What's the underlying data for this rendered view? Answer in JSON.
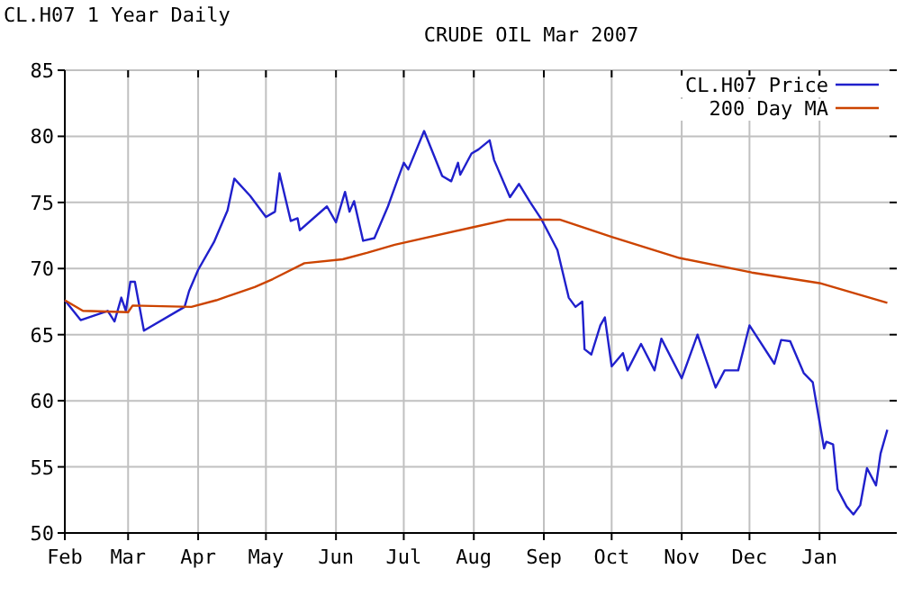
{
  "chart_data": {
    "type": "line",
    "title": "CRUDE OIL Mar 2007",
    "subtitle": "CL.H07 1 Year Daily",
    "xlim": [
      "2006-02-01",
      "2007-02-01"
    ],
    "xticks": [
      {
        "value": "2006-02-01",
        "label": "Feb"
      },
      {
        "value": "2006-03-01",
        "label": "Mar"
      },
      {
        "value": "2006-04-01",
        "label": "Apr"
      },
      {
        "value": "2006-05-01",
        "label": "May"
      },
      {
        "value": "2006-06-01",
        "label": "Jun"
      },
      {
        "value": "2006-07-01",
        "label": "Jul"
      },
      {
        "value": "2006-08-01",
        "label": "Aug"
      },
      {
        "value": "2006-09-01",
        "label": "Sep"
      },
      {
        "value": "2006-10-01",
        "label": "Oct"
      },
      {
        "value": "2006-11-01",
        "label": "Nov"
      },
      {
        "value": "2006-12-01",
        "label": "Dec"
      },
      {
        "value": "2007-01-01",
        "label": "Jan"
      }
    ],
    "ylim": [
      50,
      85
    ],
    "yticks": [
      50,
      55,
      60,
      65,
      70,
      75,
      80,
      85
    ],
    "grid": true,
    "legend": "top right",
    "line_style": "solid",
    "marker": "none",
    "series": [
      {
        "name": "CL.H07 Price",
        "color": "#2020cc",
        "x": [
          "2006-02-01",
          "2006-02-08",
          "2006-02-20",
          "2006-02-23",
          "2006-02-26",
          "2006-02-28",
          "2006-03-02",
          "2006-03-04",
          "2006-03-08",
          "2006-03-26",
          "2006-03-28",
          "2006-04-01",
          "2006-04-08",
          "2006-04-14",
          "2006-04-17",
          "2006-04-24",
          "2006-05-01",
          "2006-05-05",
          "2006-05-07",
          "2006-05-12",
          "2006-05-15",
          "2006-05-16",
          "2006-05-28",
          "2006-06-01",
          "2006-06-05",
          "2006-06-07",
          "2006-06-09",
          "2006-06-13",
          "2006-06-18",
          "2006-06-24",
          "2006-06-28",
          "2006-07-01",
          "2006-07-03",
          "2006-07-10",
          "2006-07-18",
          "2006-07-22",
          "2006-07-25",
          "2006-07-26",
          "2006-07-31",
          "2006-08-03",
          "2006-08-08",
          "2006-08-10",
          "2006-08-17",
          "2006-08-21",
          "2006-08-26",
          "2006-08-31",
          "2006-09-07",
          "2006-09-12",
          "2006-09-15",
          "2006-09-18",
          "2006-09-19",
          "2006-09-22",
          "2006-09-26",
          "2006-09-28",
          "2006-10-01",
          "2006-10-06",
          "2006-10-08",
          "2006-10-14",
          "2006-10-20",
          "2006-10-23",
          "2006-11-01",
          "2006-11-08",
          "2006-11-16",
          "2006-11-20",
          "2006-11-26",
          "2006-12-01",
          "2006-12-12",
          "2006-12-15",
          "2006-12-19",
          "2006-12-25",
          "2006-12-29",
          "2007-01-03",
          "2007-01-04",
          "2007-01-07",
          "2007-01-09",
          "2007-01-13",
          "2007-01-16",
          "2007-01-19",
          "2007-01-22",
          "2007-01-26",
          "2007-01-28",
          "2007-01-31"
        ],
        "values": [
          67.6,
          66.1,
          66.8,
          66.0,
          67.8,
          66.8,
          69.0,
          69.0,
          65.3,
          67.1,
          68.3,
          69.9,
          72.0,
          74.4,
          76.8,
          75.5,
          73.9,
          74.3,
          77.2,
          73.6,
          73.8,
          72.9,
          74.7,
          73.5,
          75.8,
          74.3,
          75.1,
          72.1,
          72.3,
          74.7,
          76.6,
          78.0,
          77.5,
          80.4,
          77.0,
          76.6,
          78.0,
          77.1,
          78.7,
          79.0,
          79.7,
          78.2,
          75.4,
          76.4,
          75.0,
          73.7,
          71.4,
          67.8,
          67.1,
          67.5,
          63.9,
          63.5,
          65.7,
          66.3,
          62.6,
          63.6,
          62.3,
          64.3,
          62.3,
          64.7,
          61.7,
          65.0,
          61.0,
          62.3,
          62.3,
          65.7,
          62.8,
          64.6,
          64.5,
          62.1,
          61.4,
          56.4,
          56.9,
          56.7,
          53.3,
          52.0,
          51.4,
          52.1,
          54.9,
          53.6,
          56.0,
          57.8
        ]
      },
      {
        "name": "200 Day MA",
        "color": "#cc4400",
        "x": [
          "2006-02-01",
          "2006-02-09",
          "2006-03-01",
          "2006-03-03",
          "2006-03-29",
          "2006-04-09",
          "2006-04-26",
          "2006-05-04",
          "2006-05-18",
          "2006-06-04",
          "2006-06-15",
          "2006-06-27",
          "2006-07-31",
          "2006-08-16",
          "2006-09-08",
          "2006-10-01",
          "2006-10-31",
          "2006-12-02",
          "2007-01-01",
          "2007-01-31"
        ],
        "values": [
          67.6,
          66.8,
          66.7,
          67.2,
          67.1,
          67.6,
          68.6,
          69.2,
          70.4,
          70.7,
          71.2,
          71.8,
          73.1,
          73.7,
          73.7,
          72.4,
          70.8,
          69.7,
          68.9,
          67.4
        ]
      }
    ]
  }
}
